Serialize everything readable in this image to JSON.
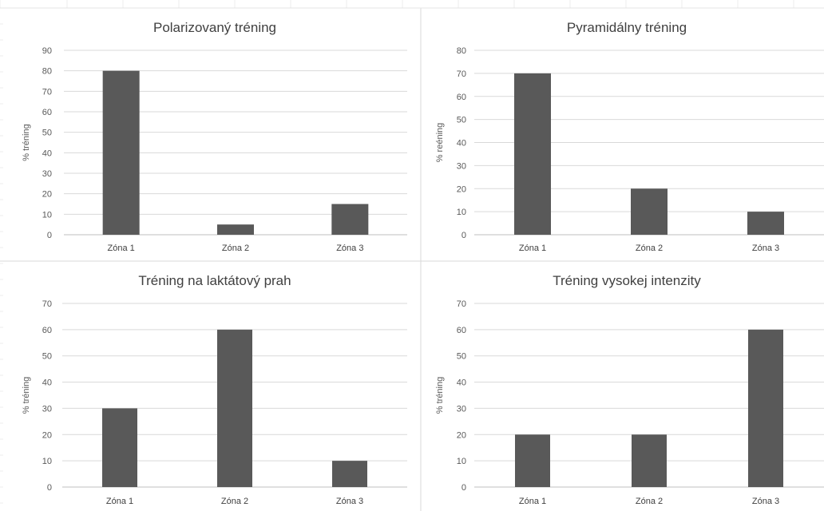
{
  "chart_data": [
    {
      "type": "bar",
      "title": "Polarizovaný tréning",
      "ylabel": "% tréning",
      "xlabel": "",
      "categories": [
        "Zóna 1",
        "Zóna 2",
        "Zóna 3"
      ],
      "values": [
        80,
        5,
        15
      ],
      "ylim": [
        0,
        90
      ],
      "ytick_step": 10,
      "grid": true,
      "legend": "none",
      "bar_color": "#595959"
    },
    {
      "type": "bar",
      "title": "Pyramidálny tréning",
      "ylabel": "% reéning",
      "xlabel": "",
      "categories": [
        "Zóna 1",
        "Zóna 2",
        "Zóna 3"
      ],
      "values": [
        70,
        20,
        10
      ],
      "ylim": [
        0,
        80
      ],
      "ytick_step": 10,
      "grid": true,
      "legend": "none",
      "bar_color": "#595959"
    },
    {
      "type": "bar",
      "title": "Tréning na laktátový prah",
      "ylabel": "% tréning",
      "xlabel": "",
      "categories": [
        "Zóna 1",
        "Zóna 2",
        "Zóna 3"
      ],
      "values": [
        30,
        60,
        10
      ],
      "ylim": [
        0,
        70
      ],
      "ytick_step": 10,
      "grid": true,
      "legend": "none",
      "bar_color": "#595959"
    },
    {
      "type": "bar",
      "title": "Tréning vysokej intenzity",
      "ylabel": "% tréning",
      "xlabel": "",
      "categories": [
        "Zóna 1",
        "Zóna 2",
        "Zóna 3"
      ],
      "values": [
        20,
        20,
        60
      ],
      "ylim": [
        0,
        70
      ],
      "ytick_step": 10,
      "grid": true,
      "legend": "none",
      "bar_color": "#595959"
    }
  ]
}
